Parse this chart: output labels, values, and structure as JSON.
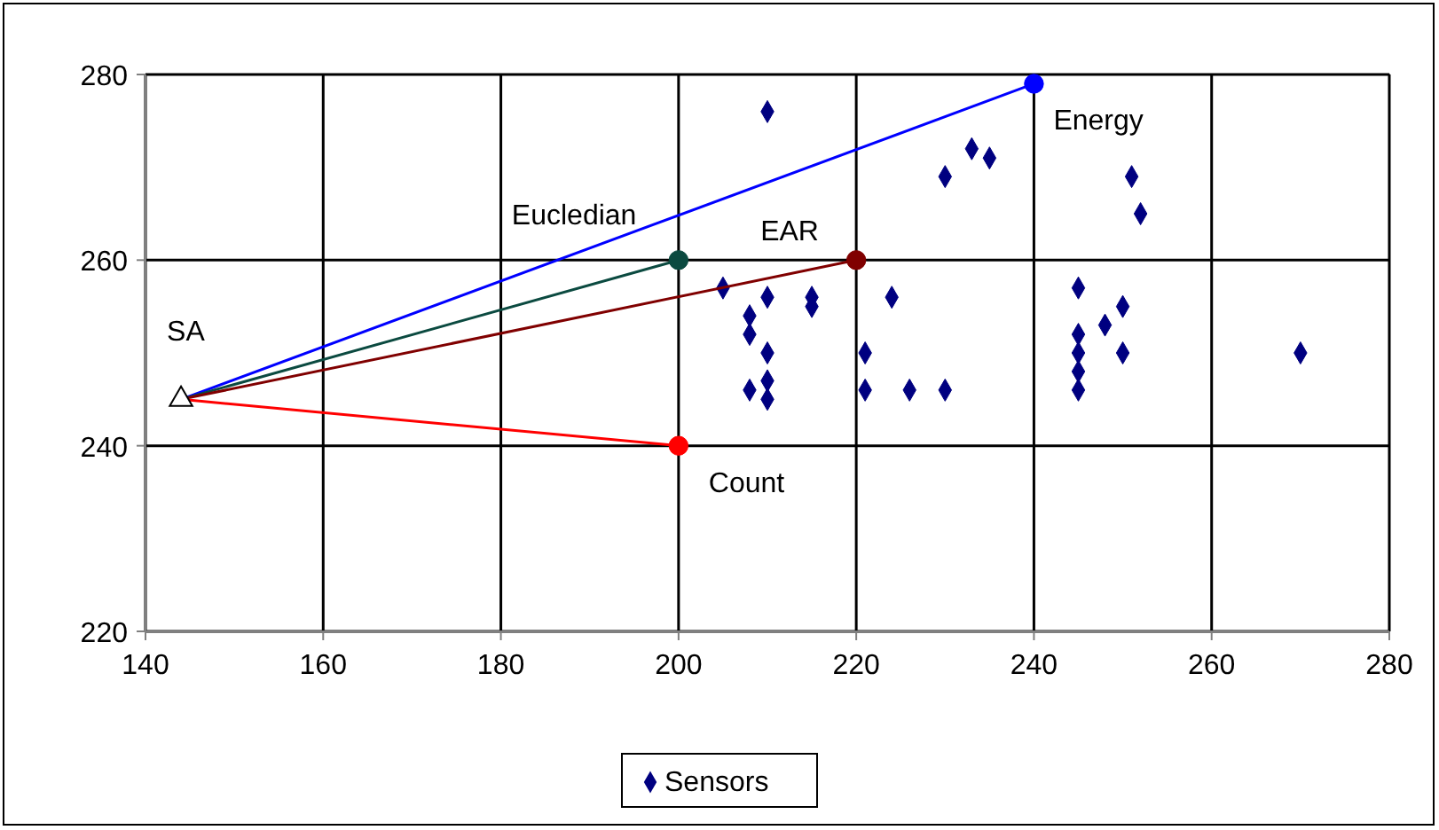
{
  "chart_data": {
    "type": "scatter",
    "xlim": [
      140,
      280
    ],
    "xticks": [
      140,
      160,
      180,
      200,
      220,
      240,
      260,
      280
    ],
    "ylim": [
      220,
      280
    ],
    "yticks": [
      220,
      240,
      260,
      280
    ],
    "grid": true,
    "legend": "bottom",
    "series": [
      {
        "name": "Sensors",
        "color": "#000080",
        "marker": "diamond",
        "x": [
          210,
          230,
          233,
          235,
          251,
          252,
          205,
          210,
          215,
          215,
          208,
          208,
          210,
          208,
          210,
          210,
          224,
          221,
          221,
          226,
          230,
          245,
          250,
          248,
          245,
          250,
          245,
          245,
          245,
          270
        ],
        "values": [
          276,
          269,
          272,
          271,
          269,
          265,
          257,
          256,
          256,
          255,
          254,
          252,
          250,
          246,
          247,
          245,
          256,
          250,
          246,
          246,
          246,
          257,
          255,
          253,
          252,
          250,
          250,
          248,
          246,
          250
        ]
      },
      {
        "type": "line",
        "color": "#0000ff",
        "marker": "circle",
        "x": [
          144,
          240
        ],
        "values": [
          245,
          279
        ]
      },
      {
        "type": "line",
        "color": "#0b4a40",
        "marker": "circle",
        "x": [
          144,
          200
        ],
        "values": [
          245,
          260
        ]
      },
      {
        "type": "line",
        "color": "#800000",
        "marker": "circle",
        "x": [
          144,
          220
        ],
        "values": [
          245,
          260
        ]
      },
      {
        "type": "line",
        "color": "#ff0000",
        "marker": "circle",
        "x": [
          144,
          200
        ],
        "values": [
          245,
          240
        ]
      },
      {
        "color": "#000000",
        "marker": "triangle",
        "x": [
          144
        ],
        "values": [
          245
        ]
      }
    ],
    "annotations": [
      {
        "text": "SA",
        "x": 144,
        "y": 245
      },
      {
        "text": "Energy",
        "x": 240,
        "y": 279
      },
      {
        "text": "Eucledian",
        "x": 200,
        "y": 260
      },
      {
        "text": "EAR",
        "x": 220,
        "y": 260
      },
      {
        "text": "Count",
        "x": 200,
        "y": 240
      }
    ]
  }
}
